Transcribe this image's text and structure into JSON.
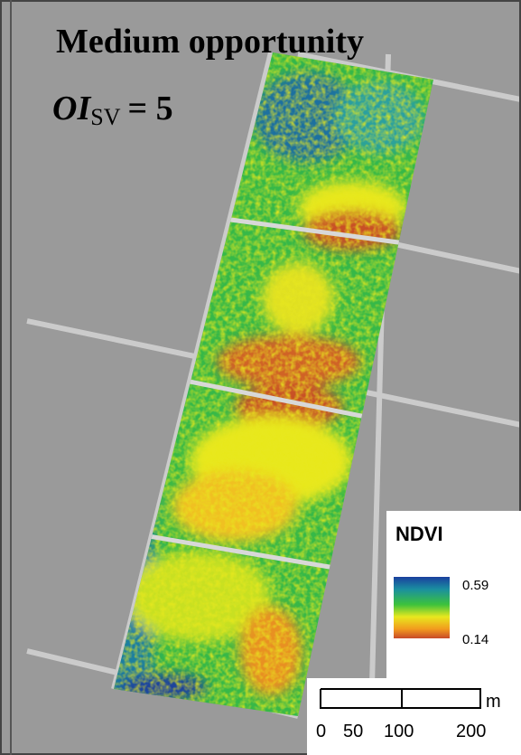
{
  "title": {
    "line1": "Medium opportunity",
    "index_symbol": "OI",
    "index_subscript": "SV",
    "index_value": "= 5"
  },
  "legend": {
    "title": "NDVI",
    "max": "0.59",
    "min": "0.14"
  },
  "scale_bar": {
    "labels": [
      "0",
      "50",
      "100",
      "200"
    ],
    "unit": "m"
  }
}
